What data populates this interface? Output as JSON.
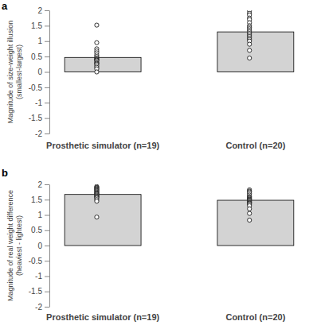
{
  "chart_data": [
    {
      "type": "bar",
      "title": "a",
      "ylabel": [
        "Magnitude of size-weight illusion",
        "(smallest-largest)"
      ],
      "categories": [
        "Prosthetic simulator (n=19)",
        "Control (n=20)"
      ],
      "values": [
        0.47,
        1.3
      ],
      "points": [
        [
          1.52,
          0.95,
          0.75,
          0.68,
          0.62,
          0.55,
          0.5,
          0.45,
          0.42,
          0.4,
          0.38,
          0.35,
          0.3,
          0.28,
          0.25,
          0.2,
          0.15,
          0.1,
          0.0
        ],
        [
          1.98,
          1.9,
          1.85,
          1.75,
          1.7,
          1.6,
          1.5,
          1.45,
          1.4,
          1.35,
          1.3,
          1.25,
          1.2,
          1.15,
          1.1,
          1.05,
          1.0,
          0.9,
          0.7,
          0.45
        ]
      ],
      "color": "#d3d3d3",
      "marker": "circle-open",
      "ylim": [
        -2,
        2
      ],
      "yticks": [
        -2,
        -1.5,
        -1,
        -0.5,
        0,
        0.5,
        1,
        1.5,
        2
      ]
    },
    {
      "type": "bar",
      "title": "b",
      "ylabel": [
        "Magnitude of real weight difference",
        "(heaviest - lightest)"
      ],
      "categories": [
        "Prosthetic simulator (n=19)",
        "Control (n=20)"
      ],
      "values": [
        1.67,
        1.48
      ],
      "points": [
        [
          1.93,
          1.9,
          1.88,
          1.85,
          1.83,
          1.8,
          1.78,
          1.75,
          1.72,
          1.7,
          1.68,
          1.65,
          1.62,
          1.6,
          1.58,
          1.55,
          1.5,
          1.45,
          0.93
        ],
        [
          1.82,
          1.78,
          1.75,
          1.7,
          1.65,
          1.6,
          1.58,
          1.55,
          1.52,
          1.5,
          1.48,
          1.45,
          1.42,
          1.4,
          1.38,
          1.35,
          1.3,
          1.2,
          1.05,
          0.83
        ]
      ],
      "color": "#d3d3d3",
      "marker": "circle-open",
      "ylim": [
        -2,
        2
      ],
      "yticks": [
        -2,
        -1.5,
        -1,
        -0.5,
        0,
        0.5,
        1,
        1.5,
        2
      ]
    }
  ]
}
